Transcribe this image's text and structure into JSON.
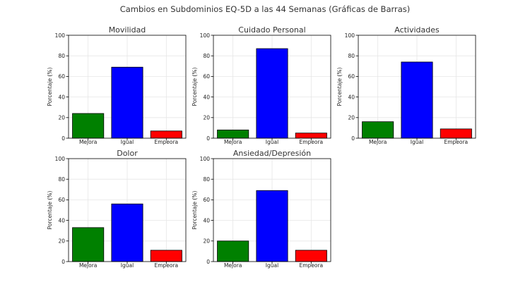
{
  "suptitle": "Cambios en Subdominios EQ-5D a las 44 Semanas (Gráficas de Barras)",
  "colors": {
    "mejora": "#008000",
    "igual": "#0000ff",
    "empeora": "#ff0000"
  },
  "chart_data": [
    {
      "type": "bar",
      "title": "Movilidad",
      "ylabel": "Porcentaje (%)",
      "ylim": [
        0,
        100
      ],
      "yticks": [
        0,
        20,
        40,
        60,
        80,
        100
      ],
      "grid": true,
      "categories": [
        "Mejora",
        "Igual",
        "Empeora"
      ],
      "values": [
        24,
        69,
        7
      ]
    },
    {
      "type": "bar",
      "title": "Cuidado Personal",
      "ylabel": "Porcentaje (%)",
      "ylim": [
        0,
        100
      ],
      "yticks": [
        0,
        20,
        40,
        60,
        80,
        100
      ],
      "grid": true,
      "categories": [
        "Mejora",
        "Igual",
        "Empeora"
      ],
      "values": [
        8,
        87,
        5
      ]
    },
    {
      "type": "bar",
      "title": "Actividades",
      "ylabel": "Porcentaje (%)",
      "ylim": [
        0,
        100
      ],
      "yticks": [
        0,
        20,
        40,
        60,
        80,
        100
      ],
      "grid": true,
      "categories": [
        "Mejora",
        "Igual",
        "Empeora"
      ],
      "values": [
        16,
        74,
        9
      ]
    },
    {
      "type": "bar",
      "title": "Dolor",
      "ylabel": "Porcentaje (%)",
      "ylim": [
        0,
        100
      ],
      "yticks": [
        0,
        20,
        40,
        60,
        80,
        100
      ],
      "grid": true,
      "categories": [
        "Mejora",
        "Igual",
        "Empeora"
      ],
      "values": [
        33,
        56,
        11
      ]
    },
    {
      "type": "bar",
      "title": "Ansiedad/Depresión",
      "ylabel": "Porcentaje (%)",
      "ylim": [
        0,
        100
      ],
      "yticks": [
        0,
        20,
        40,
        60,
        80,
        100
      ],
      "grid": true,
      "categories": [
        "Mejora",
        "Igual",
        "Empeora"
      ],
      "values": [
        20,
        69,
        11
      ]
    }
  ]
}
